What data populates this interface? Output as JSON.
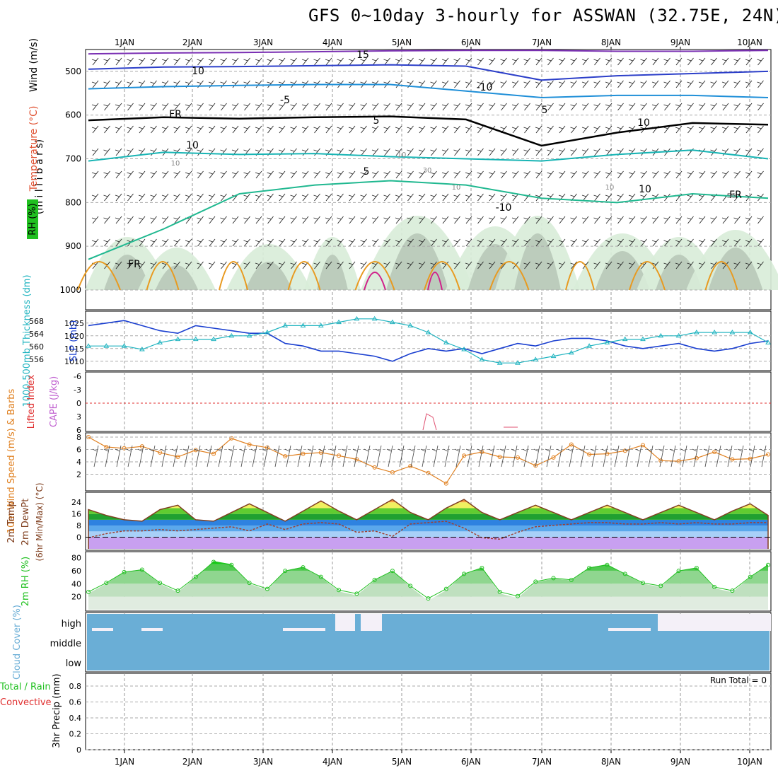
{
  "title": "GFS 0~10day 3-hourly for ASSWAN (32.75E, 24N)",
  "x_axis": {
    "days": [
      "1JAN",
      "2JAN",
      "3JAN",
      "4JAN",
      "5JAN",
      "6JAN",
      "7JAN",
      "8JAN",
      "9JAN",
      "10JAN"
    ]
  },
  "chart_data": [
    {
      "type": "contour",
      "panel": "upper-air",
      "ylabels": [
        "Wind (m/s)",
        "Temperature (°C)",
        "RH (%)",
        "(m i l l i b a r s)"
      ],
      "yticks": [
        "500",
        "600",
        "700",
        "800",
        "900",
        "1000"
      ],
      "ylim": [
        1000,
        450
      ],
      "contour_labels": [
        "15",
        "10",
        "-10",
        "-5",
        "5",
        "FR",
        "5",
        "10",
        "10",
        "5",
        "10",
        "-10",
        "FR",
        "FR"
      ],
      "minor_labels": [
        "10",
        "10",
        "30",
        "10",
        "10",
        "50"
      ],
      "isotherms": [
        {
          "name": "-15",
          "color": "#7a2fb3",
          "p": [
            460,
            458,
            457,
            455,
            453,
            452,
            452,
            454,
            454,
            452
          ]
        },
        {
          "name": "-10",
          "color": "#2c3fc9",
          "p": [
            495,
            490,
            489,
            487,
            485,
            488,
            520,
            510,
            505,
            500
          ]
        },
        {
          "name": "-5",
          "color": "#1f8fd8",
          "p": [
            540,
            535,
            532,
            530,
            530,
            545,
            560,
            555,
            555,
            560
          ]
        },
        {
          "name": "FR",
          "color": "#000000",
          "p": [
            612,
            605,
            608,
            605,
            603,
            610,
            670,
            640,
            618,
            622
          ]
        },
        {
          "name": "5",
          "color": "#18b4b4",
          "p": [
            705,
            685,
            690,
            688,
            695,
            700,
            705,
            690,
            680,
            700
          ]
        },
        {
          "name": "10",
          "color": "#20b890",
          "p": [
            930,
            860,
            780,
            760,
            750,
            760,
            790,
            800,
            780,
            790
          ]
        }
      ]
    },
    {
      "type": "line",
      "panel": "slp-thickness",
      "ylabels": [
        "1000-500mb Thickness (dm)",
        "SLP (mb)"
      ],
      "left_ticks": [
        "568",
        "564",
        "560",
        "556"
      ],
      "right_ticks": [
        "1025",
        "1020",
        "1015",
        "1010"
      ],
      "series": [
        {
          "name": "SLP",
          "color": "#1a3fd0",
          "values": [
            1024,
            1025,
            1026,
            1024,
            1022,
            1021,
            1024,
            1023,
            1022,
            1021,
            1021,
            1017,
            1016,
            1014,
            1014,
            1013,
            1012,
            1010,
            1013,
            1015,
            1014,
            1015,
            1013,
            1015,
            1017,
            1016,
            1018,
            1019,
            1019,
            1018,
            1016,
            1015,
            1016,
            1017,
            1015,
            1014,
            1015,
            1017,
            1018
          ]
        },
        {
          "name": "Thickness",
          "color": "#20b4c0",
          "values": [
            561,
            561,
            561,
            560,
            562,
            563,
            563,
            563,
            564,
            564,
            565,
            567,
            567,
            567,
            568,
            569,
            569,
            568,
            567,
            565,
            562,
            560,
            557,
            556,
            556,
            557,
            558,
            559,
            561,
            562,
            563,
            563,
            564,
            564,
            565,
            565,
            565,
            565,
            562
          ]
        }
      ]
    },
    {
      "type": "line",
      "panel": "stability",
      "ylabels": [
        "Lifted Index",
        "CAPE (J/kg)"
      ],
      "yticks": [
        "-6",
        "-3",
        "0",
        "3",
        "6"
      ],
      "ylim": [
        6,
        -6
      ],
      "series": [
        {
          "name": "CAPE",
          "color": "#e05070",
          "values": [
            0,
            0,
            0,
            0,
            0,
            0,
            0,
            0,
            0,
            0,
            0,
            0,
            0,
            0,
            0,
            0,
            0,
            0,
            0,
            0,
            0,
            0,
            0,
            0,
            0,
            0,
            0,
            0,
            0,
            0,
            0,
            0,
            0,
            0,
            0,
            0,
            0,
            0,
            0
          ]
        }
      ]
    },
    {
      "type": "line",
      "panel": "wind10m",
      "ylabels": [
        "10m Wind Speed (m/s) & Barbs"
      ],
      "yticks": [
        "8",
        "6",
        "4",
        "2"
      ],
      "ylim": [
        0,
        8
      ],
      "series": [
        {
          "name": "Speed",
          "color": "#e08020",
          "values": [
            8,
            6.4,
            6.2,
            6.5,
            5.5,
            4.8,
            5.9,
            5.3,
            7.8,
            6.8,
            6.3,
            4.9,
            5.3,
            5.5,
            5,
            4.4,
            3.1,
            2.3,
            3.3,
            2.2,
            0.5,
            5,
            5.6,
            4.8,
            4.7,
            3.4,
            4.7,
            6.8,
            5.2,
            5.3,
            5.8,
            6.7,
            4.2,
            4.1,
            4.6,
            5.6,
            4.4,
            4.5,
            5.2
          ]
        }
      ]
    },
    {
      "type": "line",
      "panel": "temp",
      "ylabels": [
        "2m Temp",
        "2m DewPt",
        "(6hr Min/Max) (°C)"
      ],
      "yticks": [
        "24",
        "16",
        "8",
        "0"
      ],
      "ylim": [
        -8,
        28
      ],
      "series": [
        {
          "name": "Temp",
          "color": "#804020",
          "values": [
            19,
            15,
            12,
            11,
            19,
            22,
            12,
            11,
            17,
            23,
            17,
            11,
            18,
            25,
            18,
            12,
            19,
            26,
            17,
            12,
            20,
            26,
            17,
            12,
            17,
            22,
            17,
            12,
            17,
            22,
            17,
            12,
            17,
            22,
            17,
            12,
            18,
            23,
            15
          ]
        },
        {
          "name": "DewPt",
          "color": "#a04030",
          "values": [
            -2,
            1,
            3,
            3,
            4,
            3,
            4,
            5,
            6,
            3,
            8,
            4,
            8,
            9,
            8,
            2,
            3,
            -1,
            8,
            9,
            10,
            5,
            -2,
            -3,
            2,
            6,
            7,
            8,
            9,
            9,
            8,
            8,
            9,
            8,
            9,
            8,
            8,
            9,
            9
          ]
        }
      ]
    },
    {
      "type": "area",
      "panel": "rh",
      "ylabels": [
        "2m RH (%)"
      ],
      "yticks": [
        "80",
        "60",
        "40",
        "20"
      ],
      "ylim": [
        0,
        85
      ],
      "series": [
        {
          "name": "RH",
          "color": "#20c020",
          "values": [
            25,
            40,
            58,
            62,
            40,
            27,
            50,
            75,
            70,
            40,
            30,
            60,
            66,
            50,
            28,
            22,
            45,
            60,
            35,
            14,
            30,
            55,
            65,
            25,
            18,
            42,
            48,
            45,
            65,
            70,
            55,
            40,
            35,
            60,
            65,
            33,
            27,
            50,
            70
          ]
        }
      ]
    },
    {
      "type": "area",
      "panel": "cloud",
      "ylabels": [
        "Cloud Cover (%)"
      ],
      "yticks": [
        "high",
        "middle",
        "low"
      ],
      "series": [
        {
          "name": "Cloud",
          "color": "#6aaed6",
          "values": [
            100,
            100,
            100,
            100,
            100,
            100,
            100,
            100,
            100,
            100,
            100,
            100,
            100,
            100,
            100,
            100,
            100,
            100,
            100,
            100,
            100,
            100,
            100,
            100,
            100,
            100,
            100,
            100,
            100,
            100,
            100,
            100,
            100,
            100,
            100,
            100,
            100,
            100,
            100
          ]
        }
      ]
    },
    {
      "type": "line",
      "panel": "precip",
      "ylabels": [
        "Total / Rain",
        "Convective",
        "3hr Precip (mm)"
      ],
      "yticks": [
        "0.8",
        "0.6",
        "0.4",
        "0.2",
        "0"
      ],
      "ylim": [
        0,
        1
      ],
      "annotation": "Run Total = 0",
      "series": [
        {
          "name": "Total / Rain",
          "color": "#20c020",
          "values": [
            0,
            0,
            0,
            0,
            0,
            0,
            0,
            0,
            0,
            0,
            0,
            0,
            0,
            0,
            0,
            0,
            0,
            0,
            0,
            0,
            0,
            0,
            0,
            0,
            0,
            0,
            0,
            0,
            0,
            0,
            0,
            0,
            0,
            0,
            0,
            0,
            0,
            0,
            0
          ]
        },
        {
          "name": "Convective",
          "color": "#e03030",
          "values": [
            0,
            0,
            0,
            0,
            0,
            0,
            0,
            0,
            0,
            0,
            0,
            0,
            0,
            0,
            0,
            0,
            0,
            0,
            0,
            0,
            0,
            0,
            0,
            0,
            0,
            0,
            0,
            0,
            0,
            0,
            0,
            0,
            0,
            0,
            0,
            0,
            0,
            0,
            0
          ]
        }
      ]
    }
  ]
}
